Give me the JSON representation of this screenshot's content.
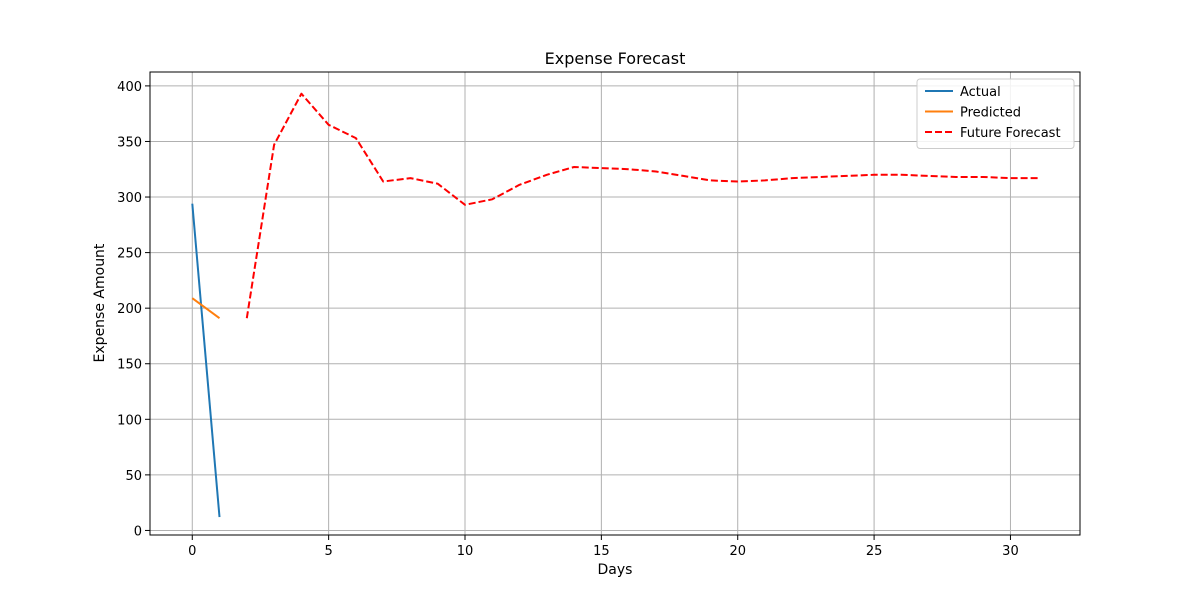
{
  "chart_data": {
    "type": "line",
    "title": "Expense Forecast",
    "xlabel": "Days",
    "ylabel": "Expense Amount",
    "xlim": [
      -1.55,
      32.55
    ],
    "ylim": [
      -4.1,
      412.5
    ],
    "xticks": [
      0,
      5,
      10,
      15,
      20,
      25,
      30
    ],
    "yticks": [
      0,
      50,
      100,
      150,
      200,
      250,
      300,
      350,
      400
    ],
    "grid": true,
    "legend_position": "top-right",
    "series": [
      {
        "name": "Actual",
        "color": "#1f77b4",
        "style": "solid",
        "x": [
          0,
          1
        ],
        "y": [
          294,
          12
        ]
      },
      {
        "name": "Predicted",
        "color": "#ff7f0e",
        "style": "solid",
        "x": [
          0,
          1
        ],
        "y": [
          209,
          191
        ]
      },
      {
        "name": "Future Forecast",
        "color": "#ff0000",
        "style": "dashed",
        "x": [
          2,
          3,
          4,
          5,
          6,
          7,
          8,
          9,
          10,
          11,
          12,
          13,
          14,
          15,
          16,
          17,
          18,
          19,
          20,
          21,
          22,
          23,
          24,
          25,
          26,
          27,
          28,
          29,
          30,
          31
        ],
        "y": [
          191,
          347,
          393,
          365,
          353,
          314,
          317,
          312,
          293,
          298,
          311,
          320,
          327,
          326,
          325,
          323,
          319,
          315,
          314,
          315,
          317,
          318,
          319,
          320,
          320,
          319,
          318,
          318,
          317,
          317
        ]
      }
    ]
  }
}
